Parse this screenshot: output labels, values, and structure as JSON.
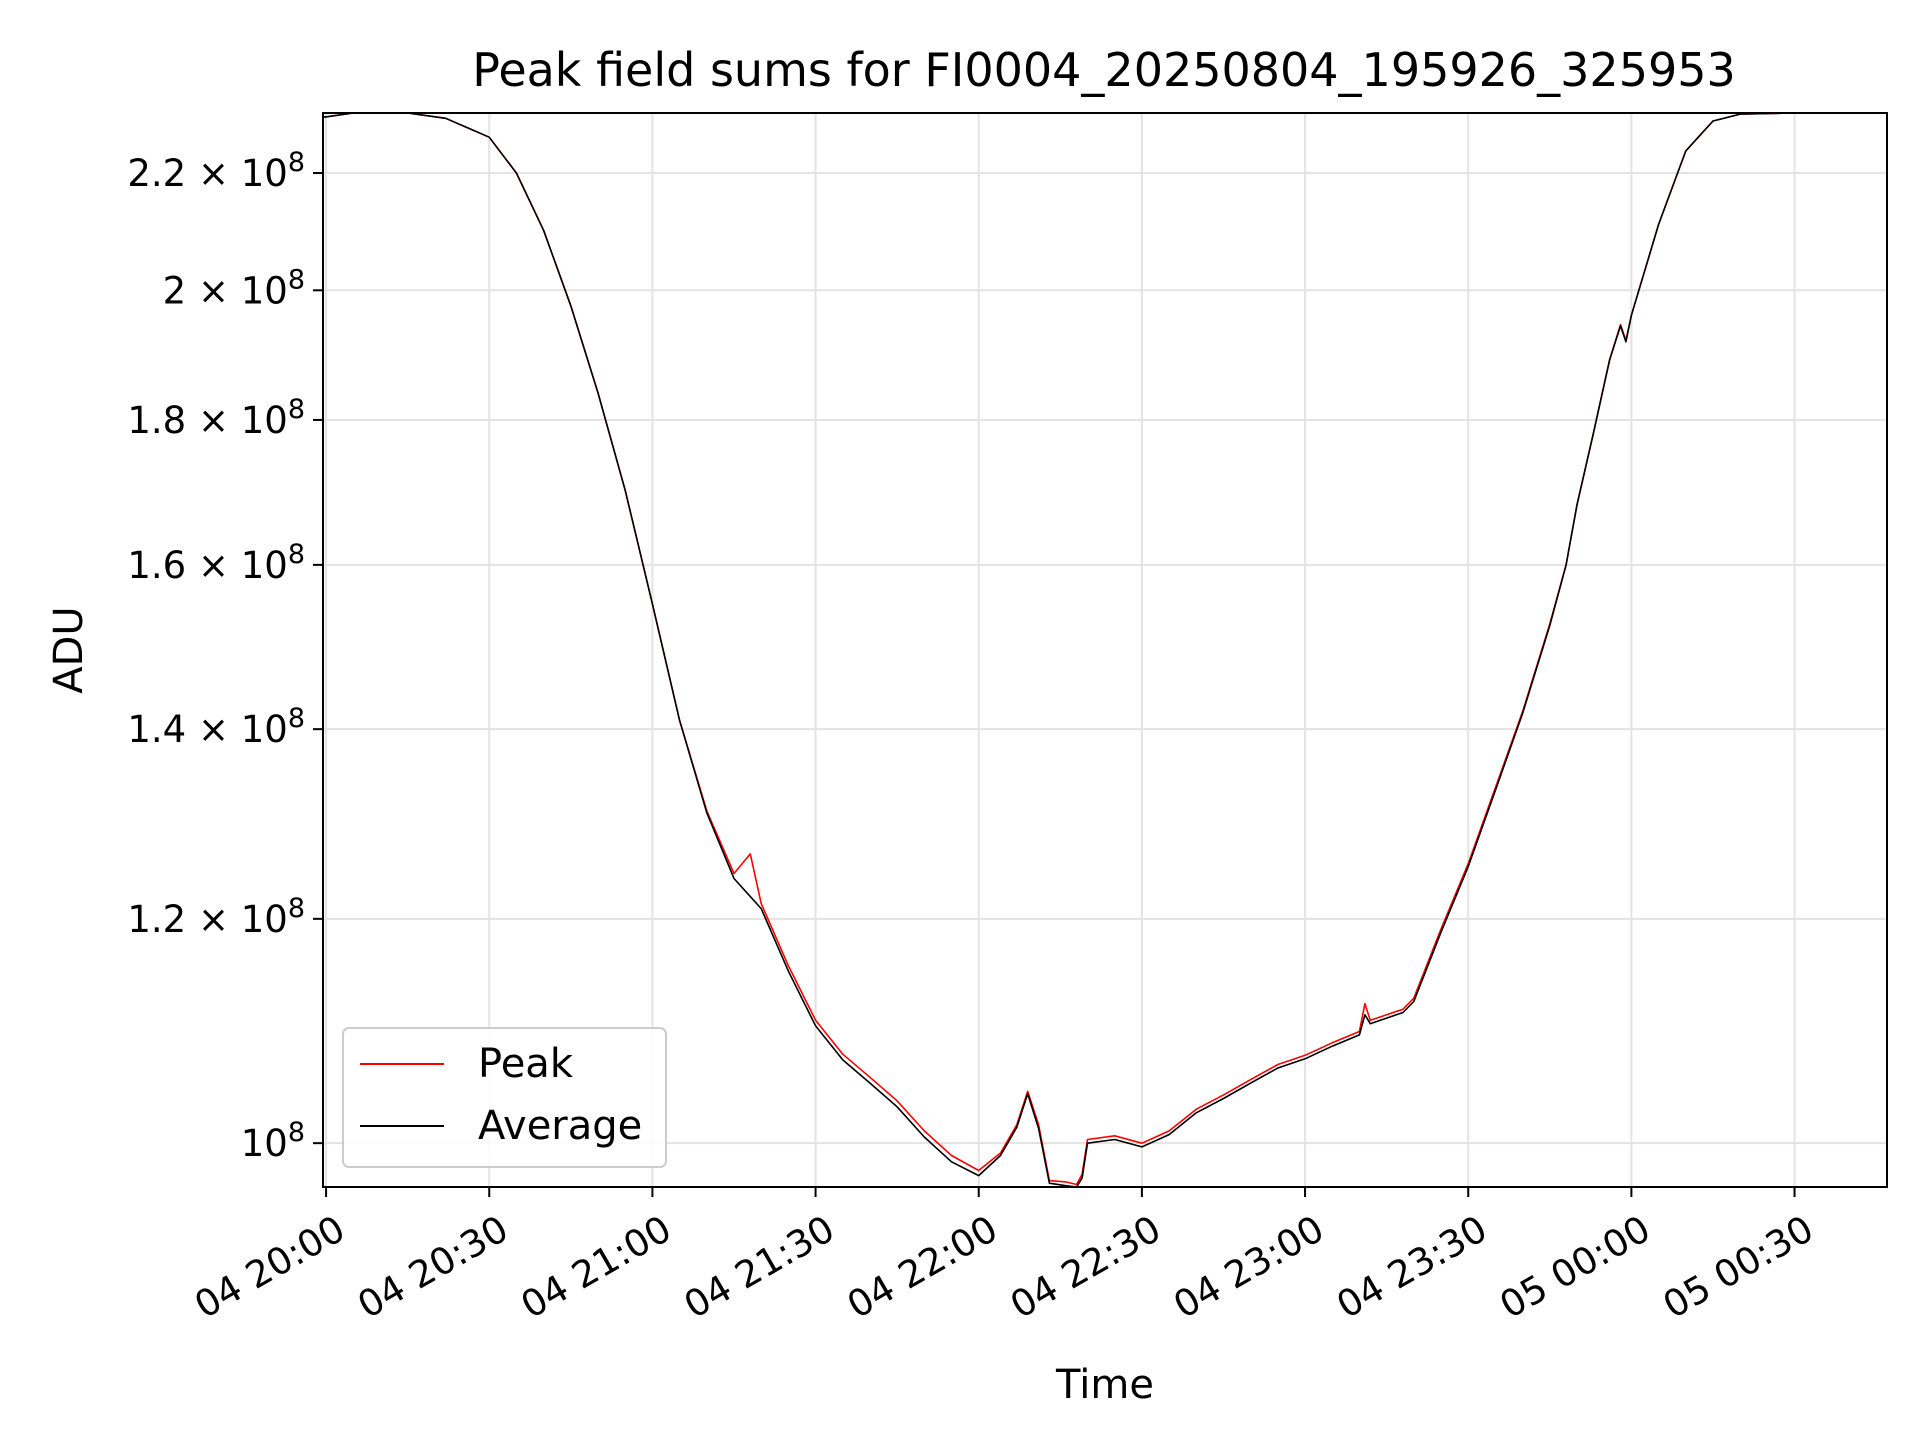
{
  "chart_data": {
    "type": "line",
    "title": "Peak field sums for FI0004_20250804_195926_325953",
    "xlabel": "Time",
    "ylabel": "ADU",
    "y_scale": "log",
    "grid": true,
    "legend_position": "lower-left",
    "xlim": [
      "2025-08-04 19:59:26",
      "2025-08-05 00:47:00"
    ],
    "ylim": [
      96500000,
      231000000
    ],
    "x_ticks": [
      {
        "t": "2025-08-04 20:00",
        "label": "04 20:00"
      },
      {
        "t": "2025-08-04 20:30",
        "label": "04 20:30"
      },
      {
        "t": "2025-08-04 21:00",
        "label": "04 21:00"
      },
      {
        "t": "2025-08-04 21:30",
        "label": "04 21:30"
      },
      {
        "t": "2025-08-04 22:00",
        "label": "04 22:00"
      },
      {
        "t": "2025-08-04 22:30",
        "label": "04 22:30"
      },
      {
        "t": "2025-08-04 23:00",
        "label": "04 23:00"
      },
      {
        "t": "2025-08-04 23:30",
        "label": "04 23:30"
      },
      {
        "t": "2025-08-05 00:00",
        "label": "05 00:00"
      },
      {
        "t": "2025-08-05 00:30",
        "label": "05 00:30"
      }
    ],
    "y_ticks": [
      {
        "value": 100000000,
        "mantissa": "",
        "exp": "8"
      },
      {
        "value": 120000000,
        "mantissa": "1.2",
        "exp": "8"
      },
      {
        "value": 140000000,
        "mantissa": "1.4",
        "exp": "8"
      },
      {
        "value": 160000000,
        "mantissa": "1.6",
        "exp": "8"
      },
      {
        "value": 180000000,
        "mantissa": "1.8",
        "exp": "8"
      },
      {
        "value": 200000000,
        "mantissa": "2",
        "exp": "8"
      },
      {
        "value": 220000000,
        "mantissa": "2.2",
        "exp": "8"
      }
    ],
    "series": [
      {
        "name": "Peak",
        "color": "#ff0000",
        "points": [
          [
            "2025-08-04 19:59:26",
            230200000
          ],
          [
            "2025-08-04 20:05",
            231000000
          ],
          [
            "2025-08-04 20:15",
            231000000
          ],
          [
            "2025-08-04 20:22",
            230000000
          ],
          [
            "2025-08-04 20:30",
            226500000
          ],
          [
            "2025-08-04 20:35",
            220000000
          ],
          [
            "2025-08-04 20:40",
            210000000
          ],
          [
            "2025-08-04 20:45",
            197500000
          ],
          [
            "2025-08-04 20:50",
            184000000
          ],
          [
            "2025-08-04 20:55",
            170000000
          ],
          [
            "2025-08-04 21:00",
            155000000
          ],
          [
            "2025-08-04 21:05",
            141000000
          ],
          [
            "2025-08-04 21:10",
            131000000
          ],
          [
            "2025-08-04 21:15",
            124500000
          ],
          [
            "2025-08-04 21:18",
            126500000
          ],
          [
            "2025-08-04 21:19",
            124000000
          ],
          [
            "2025-08-04 21:20",
            121500000
          ],
          [
            "2025-08-04 21:25",
            115500000
          ],
          [
            "2025-08-04 21:30",
            110500000
          ],
          [
            "2025-08-04 21:35",
            107500000
          ],
          [
            "2025-08-04 21:40",
            105500000
          ],
          [
            "2025-08-04 21:45",
            103500000
          ],
          [
            "2025-08-04 21:50",
            101000000
          ],
          [
            "2025-08-04 21:55",
            99000000
          ],
          [
            "2025-08-04 22:00",
            97800000
          ],
          [
            "2025-08-04 22:04",
            99200000
          ],
          [
            "2025-08-04 22:07",
            101500000
          ],
          [
            "2025-08-04 22:09",
            104300000
          ],
          [
            "2025-08-04 22:11",
            101500000
          ],
          [
            "2025-08-04 22:13",
            97000000
          ],
          [
            "2025-08-04 22:16",
            96900000
          ],
          [
            "2025-08-04 22:18",
            96700000
          ],
          [
            "2025-08-04 22:19",
            97500000
          ],
          [
            "2025-08-04 22:20",
            100300000
          ],
          [
            "2025-08-04 22:25",
            100600000
          ],
          [
            "2025-08-04 22:30",
            100000000
          ],
          [
            "2025-08-04 22:35",
            101000000
          ],
          [
            "2025-08-04 22:40",
            102800000
          ],
          [
            "2025-08-04 22:45",
            104000000
          ],
          [
            "2025-08-04 22:50",
            105300000
          ],
          [
            "2025-08-04 22:55",
            106600000
          ],
          [
            "2025-08-04 23:00",
            107400000
          ],
          [
            "2025-08-04 23:05",
            108500000
          ],
          [
            "2025-08-04 23:10",
            109500000
          ],
          [
            "2025-08-04 23:11",
            112000000
          ],
          [
            "2025-08-04 23:12",
            110500000
          ],
          [
            "2025-08-04 23:15",
            111000000
          ],
          [
            "2025-08-04 23:18",
            111500000
          ],
          [
            "2025-08-04 23:20",
            112500000
          ],
          [
            "2025-08-04 23:25",
            119000000
          ],
          [
            "2025-08-04 23:30",
            125500000
          ],
          [
            "2025-08-04 23:35",
            133500000
          ],
          [
            "2025-08-04 23:40",
            142000000
          ],
          [
            "2025-08-04 23:45",
            152500000
          ],
          [
            "2025-08-04 23:48",
            160000000
          ],
          [
            "2025-08-04 23:50",
            168000000
          ],
          [
            "2025-08-04 23:53",
            178000000
          ],
          [
            "2025-08-04 23:56",
            189000000
          ],
          [
            "2025-08-04 23:58",
            194500000
          ],
          [
            "2025-08-04 23:59",
            192000000
          ],
          [
            "2025-08-05 00:00",
            196000000
          ],
          [
            "2025-08-05 00:05",
            211000000
          ],
          [
            "2025-08-05 00:10",
            224000000
          ],
          [
            "2025-08-05 00:15",
            229500000
          ],
          [
            "2025-08-05 00:20",
            230800000
          ],
          [
            "2025-08-05 00:30",
            231000000
          ]
        ]
      },
      {
        "name": "Average",
        "color": "#000000",
        "points": [
          [
            "2025-08-04 19:59:26",
            230200000
          ],
          [
            "2025-08-04 20:05",
            231000000
          ],
          [
            "2025-08-04 20:15",
            231000000
          ],
          [
            "2025-08-04 20:22",
            230000000
          ],
          [
            "2025-08-04 20:30",
            226500000
          ],
          [
            "2025-08-04 20:35",
            220000000
          ],
          [
            "2025-08-04 20:40",
            210000000
          ],
          [
            "2025-08-04 20:45",
            197500000
          ],
          [
            "2025-08-04 20:50",
            184000000
          ],
          [
            "2025-08-04 20:55",
            170000000
          ],
          [
            "2025-08-04 21:00",
            155000000
          ],
          [
            "2025-08-04 21:05",
            141000000
          ],
          [
            "2025-08-04 21:10",
            130800000
          ],
          [
            "2025-08-04 21:15",
            124000000
          ],
          [
            "2025-08-04 21:20",
            121000000
          ],
          [
            "2025-08-04 21:25",
            115000000
          ],
          [
            "2025-08-04 21:30",
            110000000
          ],
          [
            "2025-08-04 21:35",
            107000000
          ],
          [
            "2025-08-04 21:40",
            105000000
          ],
          [
            "2025-08-04 21:45",
            103000000
          ],
          [
            "2025-08-04 21:50",
            100500000
          ],
          [
            "2025-08-04 21:55",
            98500000
          ],
          [
            "2025-08-04 22:00",
            97400000
          ],
          [
            "2025-08-04 22:04",
            99000000
          ],
          [
            "2025-08-04 22:07",
            101300000
          ],
          [
            "2025-08-04 22:09",
            104100000
          ],
          [
            "2025-08-04 22:11",
            101200000
          ],
          [
            "2025-08-04 22:13",
            96800000
          ],
          [
            "2025-08-04 22:16",
            96600000
          ],
          [
            "2025-08-04 22:18",
            96500000
          ],
          [
            "2025-08-04 22:19",
            97200000
          ],
          [
            "2025-08-04 22:20",
            100000000
          ],
          [
            "2025-08-04 22:25",
            100300000
          ],
          [
            "2025-08-04 22:30",
            99700000
          ],
          [
            "2025-08-04 22:35",
            100700000
          ],
          [
            "2025-08-04 22:40",
            102500000
          ],
          [
            "2025-08-04 22:45",
            103700000
          ],
          [
            "2025-08-04 22:50",
            105000000
          ],
          [
            "2025-08-04 22:55",
            106300000
          ],
          [
            "2025-08-04 23:00",
            107100000
          ],
          [
            "2025-08-04 23:05",
            108200000
          ],
          [
            "2025-08-04 23:10",
            109200000
          ],
          [
            "2025-08-04 23:11",
            111000000
          ],
          [
            "2025-08-04 23:12",
            110200000
          ],
          [
            "2025-08-04 23:15",
            110700000
          ],
          [
            "2025-08-04 23:18",
            111200000
          ],
          [
            "2025-08-04 23:20",
            112200000
          ],
          [
            "2025-08-04 23:25",
            118700000
          ],
          [
            "2025-08-04 23:30",
            125200000
          ],
          [
            "2025-08-04 23:35",
            133200000
          ],
          [
            "2025-08-04 23:40",
            141800000
          ],
          [
            "2025-08-04 23:45",
            152300000
          ],
          [
            "2025-08-04 23:48",
            160000000
          ],
          [
            "2025-08-04 23:50",
            168000000
          ],
          [
            "2025-08-04 23:53",
            178000000
          ],
          [
            "2025-08-04 23:56",
            189000000
          ],
          [
            "2025-08-04 23:58",
            194300000
          ],
          [
            "2025-08-04 23:59",
            191800000
          ],
          [
            "2025-08-05 00:00",
            196000000
          ],
          [
            "2025-08-05 00:05",
            211000000
          ],
          [
            "2025-08-05 00:10",
            224000000
          ],
          [
            "2025-08-05 00:15",
            229500000
          ],
          [
            "2025-08-05 00:20",
            230800000
          ],
          [
            "2025-08-05 00:30",
            231000000
          ]
        ]
      }
    ]
  }
}
